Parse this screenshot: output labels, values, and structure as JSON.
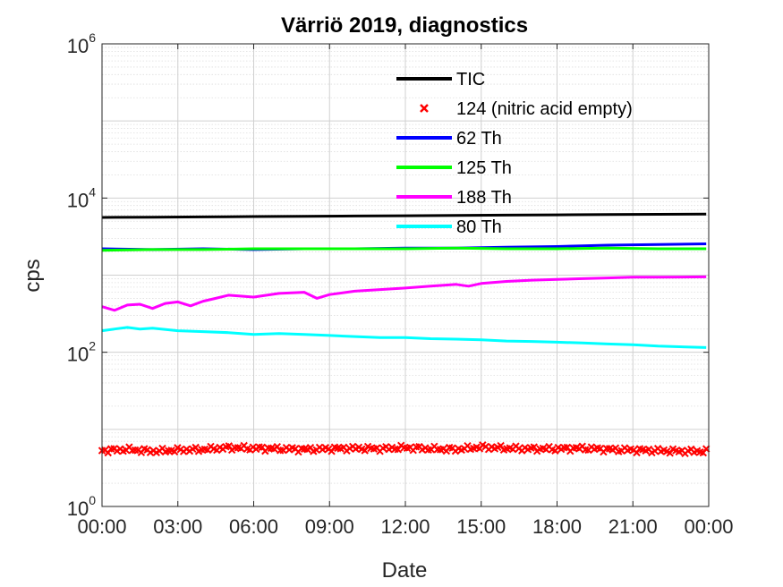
{
  "chart_data": {
    "type": "line",
    "title": "Värriö 2019, diagnostics",
    "xlabel": "Date",
    "ylabel": "cps",
    "xlim": [
      0,
      24
    ],
    "x_ticks": [
      "00:00",
      "03:00",
      "06:00",
      "09:00",
      "12:00",
      "15:00",
      "18:00",
      "21:00",
      "00:00"
    ],
    "x_tick_hours": [
      0,
      3,
      6,
      9,
      12,
      15,
      18,
      21,
      24
    ],
    "yscale": "log",
    "ylim": [
      1,
      1000000
    ],
    "y_ticks": [
      {
        "base": "10",
        "exp": "0"
      },
      {
        "base": "10",
        "exp": "2"
      },
      {
        "base": "10",
        "exp": "4"
      },
      {
        "base": "10",
        "exp": "6"
      }
    ],
    "y_tick_values": [
      1,
      100,
      10000,
      1000000
    ],
    "grid": true,
    "minor_grid": true,
    "legend_position": "top-right (inside)",
    "series": [
      {
        "name": "TIC",
        "color": "#000000",
        "marker": "line",
        "x": [
          0,
          2,
          4,
          6,
          8,
          10,
          12,
          14,
          16,
          18,
          20,
          22,
          23.9
        ],
        "y": [
          5600,
          5650,
          5700,
          5750,
          5800,
          5850,
          5900,
          5950,
          6000,
          6050,
          6100,
          6150,
          6200
        ]
      },
      {
        "name": "124 (nitric acid empty)",
        "color": "#ff0000",
        "marker": "x",
        "x": [
          0,
          1,
          2,
          3,
          4,
          5,
          6,
          7,
          8,
          9,
          10,
          11,
          12,
          13,
          14,
          15,
          16,
          17,
          18,
          19,
          20,
          21,
          22,
          23,
          23.9
        ],
        "y": [
          5.3,
          5.5,
          5.2,
          5.4,
          5.5,
          5.8,
          5.7,
          5.6,
          5.5,
          5.6,
          5.7,
          5.6,
          5.8,
          5.6,
          5.5,
          5.9,
          5.7,
          5.6,
          5.6,
          5.7,
          5.5,
          5.4,
          5.3,
          5.2,
          5.2
        ]
      },
      {
        "name": "62 Th",
        "color": "#0000ff",
        "marker": "line",
        "x": [
          0,
          2,
          4,
          6,
          8,
          10,
          12,
          14,
          16,
          18,
          19,
          20,
          22,
          23.9
        ],
        "y": [
          2200,
          2150,
          2200,
          2150,
          2200,
          2200,
          2250,
          2250,
          2300,
          2350,
          2400,
          2450,
          2500,
          2550
        ]
      },
      {
        "name": "125 Th",
        "color": "#00ff00",
        "marker": "line",
        "x": [
          0,
          2,
          4,
          6,
          8,
          10,
          12,
          14,
          16,
          18,
          20,
          22,
          23.9
        ],
        "y": [
          2100,
          2150,
          2150,
          2200,
          2200,
          2200,
          2200,
          2250,
          2200,
          2200,
          2250,
          2200,
          2200
        ]
      },
      {
        "name": "188 Th",
        "color": "#ff00ff",
        "marker": "line",
        "x": [
          0,
          0.5,
          1,
          1.5,
          2,
          2.5,
          3,
          3.5,
          4,
          4.5,
          5,
          6,
          7,
          8,
          8.5,
          9,
          10,
          11,
          12,
          13,
          14,
          14.5,
          15,
          16,
          17,
          18,
          19,
          20,
          21,
          22,
          23.9
        ],
        "y": [
          390,
          350,
          410,
          420,
          370,
          430,
          450,
          400,
          460,
          500,
          550,
          520,
          580,
          600,
          500,
          560,
          620,
          650,
          680,
          720,
          760,
          720,
          780,
          830,
          860,
          880,
          900,
          920,
          940,
          940,
          950
        ]
      },
      {
        "name": "80 Th",
        "color": "#00ffff",
        "marker": "line",
        "x": [
          0,
          0.5,
          1,
          1.5,
          2,
          3,
          4,
          5,
          6,
          7,
          8,
          9,
          10,
          11,
          12,
          13,
          14,
          15,
          16,
          17,
          18,
          19,
          20,
          21,
          22,
          23.9
        ],
        "y": [
          190,
          200,
          210,
          200,
          205,
          190,
          185,
          180,
          170,
          175,
          170,
          165,
          160,
          155,
          155,
          150,
          148,
          145,
          140,
          138,
          135,
          132,
          128,
          125,
          120,
          115
        ]
      }
    ]
  }
}
